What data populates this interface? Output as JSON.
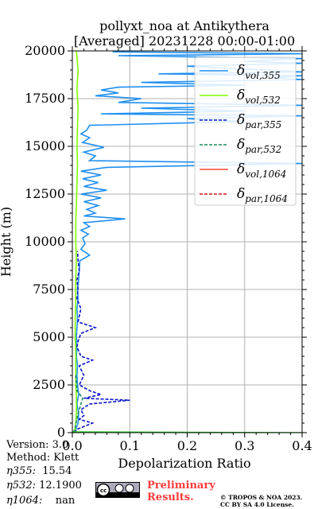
{
  "chart_data": {
    "type": "line",
    "title_line1": "pollyxt_noa at Antikythera",
    "title_line2": "[Averaged] 20231228 00:00-01:00",
    "xlabel": "Depolarization Ratio",
    "ylabel": "Height (m)",
    "xlim": [
      0,
      0.4
    ],
    "ylim": [
      0,
      20000
    ],
    "x_ticks": [
      "0.0",
      "0.1",
      "0.2",
      "0.3",
      "0.4"
    ],
    "y_ticks": [
      "0",
      "2500",
      "5000",
      "7500",
      "10000",
      "12500",
      "15000",
      "17500",
      "20000"
    ],
    "grid": true,
    "legend_position": "top-right",
    "series": [
      {
        "name": "δvol,355",
        "label_main": "δ",
        "label_sub": "vol,355",
        "color": "#1f8ff0",
        "style": "solid",
        "points": [
          [
            0.004,
            0
          ],
          [
            0.006,
            150
          ],
          [
            0.01,
            500
          ],
          [
            0.011,
            1000
          ],
          [
            0.008,
            1500
          ],
          [
            0.011,
            2000
          ],
          [
            0.009,
            2500
          ],
          [
            0.008,
            3000
          ],
          [
            0.009,
            3500
          ],
          [
            0.007,
            4000
          ],
          [
            0.008,
            4500
          ],
          [
            0.007,
            5000
          ],
          [
            0.008,
            5500
          ],
          [
            0.009,
            6000
          ],
          [
            0.008,
            6500
          ],
          [
            0.01,
            7000
          ],
          [
            0.009,
            7500
          ],
          [
            0.011,
            8000
          ],
          [
            0.012,
            8500
          ],
          [
            0.013,
            9000
          ],
          [
            0.03,
            9300
          ],
          [
            0.015,
            9600
          ],
          [
            0.022,
            9900
          ],
          [
            0.018,
            10200
          ],
          [
            0.028,
            10400
          ],
          [
            0.015,
            10600
          ],
          [
            0.03,
            10800
          ],
          [
            0.02,
            11000
          ],
          [
            0.092,
            11200
          ],
          [
            0.02,
            11350
          ],
          [
            0.04,
            11500
          ],
          [
            0.025,
            11700
          ],
          [
            0.045,
            11900
          ],
          [
            0.02,
            12100
          ],
          [
            0.05,
            12300
          ],
          [
            0.015,
            12500
          ],
          [
            0.06,
            12700
          ],
          [
            0.02,
            12900
          ],
          [
            0.045,
            13100
          ],
          [
            0.018,
            13300
          ],
          [
            0.05,
            13500
          ],
          [
            0.015,
            13700
          ],
          [
            0.06,
            13900
          ],
          [
            0.4,
            14100
          ],
          [
            0.03,
            14250
          ],
          [
            0.04,
            14500
          ],
          [
            0.02,
            14700
          ],
          [
            0.055,
            14950
          ],
          [
            0.018,
            15200
          ],
          [
            0.03,
            15450
          ],
          [
            0.015,
            15650
          ],
          [
            0.025,
            15850
          ],
          [
            0.03,
            16100
          ],
          [
            0.3,
            16300
          ],
          [
            0.2,
            16450
          ],
          [
            0.4,
            16600
          ],
          [
            0.05,
            16700
          ],
          [
            0.3,
            16850
          ],
          [
            0.12,
            17000
          ],
          [
            0.4,
            17150
          ],
          [
            0.08,
            17300
          ],
          [
            0.12,
            17500
          ],
          [
            0.04,
            17650
          ],
          [
            0.08,
            17800
          ],
          [
            0.05,
            17950
          ],
          [
            0.08,
            18100
          ],
          [
            0.3,
            18200
          ],
          [
            0.12,
            18350
          ],
          [
            0.4,
            18500
          ],
          [
            0.35,
            18600
          ],
          [
            0.4,
            18700
          ],
          [
            0.15,
            18800
          ],
          [
            0.4,
            18900
          ],
          [
            0.3,
            19050
          ],
          [
            0.2,
            19200
          ],
          [
            0.4,
            19350
          ],
          [
            0.3,
            19450
          ],
          [
            0.4,
            19600
          ],
          [
            0.08,
            19750
          ],
          [
            0.4,
            19850
          ],
          [
            0.07,
            19950
          ]
        ]
      },
      {
        "name": "δvol,532",
        "label_main": "δ",
        "label_sub": "vol,532",
        "color": "#80ff00",
        "style": "solid",
        "points": [
          [
            0.004,
            0
          ],
          [
            0.005,
            200
          ],
          [
            0.006,
            500
          ],
          [
            0.007,
            1000
          ],
          [
            0.007,
            2000
          ],
          [
            0.006,
            2500
          ],
          [
            0.006,
            3000
          ],
          [
            0.006,
            4000
          ],
          [
            0.005,
            5000
          ],
          [
            0.005,
            6000
          ],
          [
            0.006,
            7000
          ],
          [
            0.006,
            8000
          ],
          [
            0.007,
            9000
          ],
          [
            0.006,
            10000
          ],
          [
            0.006,
            11000
          ],
          [
            0.007,
            12000
          ],
          [
            0.008,
            13000
          ],
          [
            0.009,
            14000
          ],
          [
            0.008,
            15000
          ],
          [
            0.009,
            16000
          ],
          [
            0.01,
            17000
          ],
          [
            0.008,
            18000
          ],
          [
            0.01,
            19000
          ],
          [
            0.007,
            20000
          ]
        ]
      },
      {
        "name": "δpar,355",
        "label_main": "δ",
        "label_sub": "par,355",
        "color": "#0a14c8",
        "style": "dashed",
        "points": [
          [
            0.003,
            0
          ],
          [
            0.01,
            200
          ],
          [
            0.035,
            500
          ],
          [
            0.012,
            700
          ],
          [
            0.02,
            900
          ],
          [
            0.015,
            1200
          ],
          [
            0.03,
            1500
          ],
          [
            0.1,
            1700
          ],
          [
            0.02,
            1800
          ],
          [
            0.05,
            2000
          ],
          [
            0.03,
            2200
          ],
          [
            0.012,
            2500
          ],
          [
            0.02,
            3000
          ],
          [
            0.012,
            3500
          ],
          [
            0.035,
            3800
          ],
          [
            0.015,
            4000
          ],
          [
            0.008,
            4500
          ],
          [
            0.01,
            4800
          ],
          [
            0.015,
            5200
          ],
          [
            0.04,
            5500
          ],
          [
            0.01,
            5800
          ],
          [
            0.015,
            6500
          ],
          [
            0.008,
            7000
          ],
          [
            0.01,
            7500
          ],
          [
            0.008,
            8000
          ],
          [
            0.012,
            8500
          ],
          [
            0.01,
            9000
          ],
          [
            0.009,
            9500
          ]
        ]
      },
      {
        "name": "δpar,532",
        "label_main": "δ",
        "label_sub": "par,532",
        "color": "#1a8a5a",
        "style": "dashed",
        "points": [
          [
            0.002,
            0
          ],
          [
            0.005,
            300
          ],
          [
            0.01,
            1000
          ],
          [
            0.018,
            1800
          ],
          [
            0.008,
            2200
          ],
          [
            0.006,
            3000
          ]
        ]
      },
      {
        "name": "δvol,1064",
        "label_main": "δ",
        "label_sub": "vol,1064",
        "color": "#f04a3a",
        "style": "solid",
        "points": []
      },
      {
        "name": "δpar,1064",
        "label_main": "δ",
        "label_sub": "par,1064",
        "color": "#d4141e",
        "style": "dashed",
        "points": []
      }
    ],
    "ground_line": {
      "color": "#2ec82e",
      "points": [
        [
          0.0,
          40
        ],
        [
          0.4,
          0
        ]
      ]
    }
  },
  "info": {
    "version": "Version: 3.0",
    "method": "Method: Klett",
    "eta355_label": "η355:",
    "eta355_value": "15.54",
    "eta532_label": "η532:",
    "eta532_value": "12.1900",
    "eta1064_label": "η1064:",
    "eta1064_value": "nan"
  },
  "badge": {
    "line1": "Preliminary",
    "line2": "Results."
  },
  "copyright": {
    "line1": "© TROPOS & NOA 2023.",
    "line2": "CC BY SA 4.0 License."
  }
}
